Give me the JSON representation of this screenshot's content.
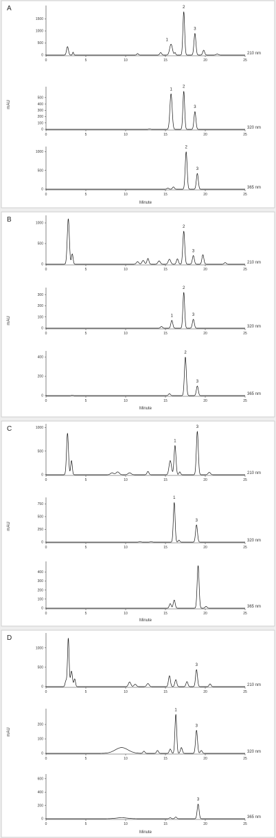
{
  "chart_data": [
    {
      "panel": "A",
      "type": "line",
      "xlabel": "Minute",
      "ylabel": "mAU",
      "xlim": [
        0,
        25
      ],
      "xticks": [
        0,
        5,
        10,
        15,
        20,
        25
      ],
      "traces": [
        {
          "name": "210 nm",
          "ylim": [
            0,
            2000
          ],
          "yticks": [
            0,
            500,
            1000,
            1500
          ],
          "peaks": [
            [
              2.7,
              350,
              0.12
            ],
            [
              3.4,
              120,
              0.07
            ],
            [
              11.5,
              60,
              0.1
            ],
            [
              14.4,
              100,
              0.12
            ],
            [
              15.7,
              450,
              0.17
            ],
            [
              16.2,
              100,
              0.08
            ],
            [
              17.3,
              1800,
              0.11
            ],
            [
              18.7,
              900,
              0.12
            ],
            [
              19.8,
              200,
              0.12
            ],
            [
              21.5,
              40,
              0.15
            ]
          ],
          "labels": [
            {
              "text": "1",
              "x": 15.7
            },
            {
              "text": "2",
              "x": 17.3
            },
            {
              "text": "3",
              "x": 18.7
            }
          ]
        },
        {
          "name": "320 nm",
          "ylim": [
            0,
            650
          ],
          "yticks": [
            0,
            100,
            200,
            300,
            400,
            500
          ],
          "peaks": [
            [
              13.0,
              8,
              0.1
            ],
            [
              15.7,
              560,
              0.14
            ],
            [
              17.3,
              600,
              0.11
            ],
            [
              18.7,
              280,
              0.12
            ]
          ],
          "labels": [
            {
              "text": "1",
              "x": 15.7
            },
            {
              "text": "2",
              "x": 17.3
            },
            {
              "text": "3",
              "x": 18.7
            }
          ]
        },
        {
          "name": "365 nm",
          "ylim": [
            0,
            1100
          ],
          "yticks": [
            0,
            500,
            1000
          ],
          "peaks": [
            [
              15.3,
              30,
              0.12
            ],
            [
              16.0,
              60,
              0.12
            ],
            [
              17.6,
              1000,
              0.12
            ],
            [
              19.0,
              420,
              0.12
            ]
          ],
          "labels": [
            {
              "text": "2",
              "x": 17.6
            },
            {
              "text": "3",
              "x": 19.0
            }
          ]
        }
      ]
    },
    {
      "panel": "B",
      "type": "line",
      "xlabel": "Minute",
      "ylabel": "mAU",
      "xlim": [
        0,
        25
      ],
      "xticks": [
        0,
        5,
        10,
        15,
        20,
        25
      ],
      "traces": [
        {
          "name": "210 nm",
          "ylim": [
            0,
            1150
          ],
          "yticks": [
            0,
            500,
            1000
          ],
          "peaks": [
            [
              2.8,
              1100,
              0.13
            ],
            [
              3.3,
              250,
              0.1
            ],
            [
              11.5,
              60,
              0.15
            ],
            [
              12.2,
              90,
              0.15
            ],
            [
              12.8,
              140,
              0.12
            ],
            [
              14.2,
              80,
              0.15
            ],
            [
              15.5,
              120,
              0.15
            ],
            [
              16.5,
              130,
              0.12
            ],
            [
              17.3,
              800,
              0.12
            ],
            [
              18.5,
              210,
              0.12
            ],
            [
              19.7,
              230,
              0.12
            ],
            [
              22.5,
              40,
              0.12
            ]
          ],
          "labels": [
            {
              "text": "2",
              "x": 17.3
            },
            {
              "text": "3",
              "x": 18.5
            }
          ]
        },
        {
          "name": "320 nm",
          "ylim": [
            0,
            350
          ],
          "yticks": [
            0,
            100,
            200,
            300
          ],
          "peaks": [
            [
              14.5,
              15,
              0.12
            ],
            [
              15.8,
              70,
              0.12
            ],
            [
              17.3,
              320,
              0.11
            ],
            [
              18.5,
              80,
              0.12
            ]
          ],
          "labels": [
            {
              "text": "1",
              "x": 15.8
            },
            {
              "text": "2",
              "x": 17.3
            },
            {
              "text": "3",
              "x": 18.5
            }
          ]
        },
        {
          "name": "365 nm",
          "ylim": [
            0,
            450
          ],
          "yticks": [
            0,
            200,
            400
          ],
          "peaks": [
            [
              3.3,
              5,
              0.1
            ],
            [
              15.5,
              20,
              0.12
            ],
            [
              17.5,
              400,
              0.12
            ],
            [
              19.0,
              100,
              0.12
            ]
          ],
          "labels": [
            {
              "text": "2",
              "x": 17.5
            },
            {
              "text": "3",
              "x": 19.0
            }
          ]
        }
      ]
    },
    {
      "panel": "C",
      "type": "line",
      "xlabel": "Minute",
      "ylabel": "mAU",
      "xlim": [
        0,
        25
      ],
      "xticks": [
        0,
        5,
        10,
        15,
        20,
        25
      ],
      "traces": [
        {
          "name": "210 nm",
          "ylim": [
            0,
            1050
          ],
          "yticks": [
            0,
            500,
            1000
          ],
          "peaks": [
            [
              2.7,
              880,
              0.12
            ],
            [
              3.2,
              300,
              0.1
            ],
            [
              8.3,
              40,
              0.2
            ],
            [
              9.0,
              60,
              0.2
            ],
            [
              10.5,
              40,
              0.2
            ],
            [
              12.8,
              70,
              0.12
            ],
            [
              15.6,
              300,
              0.15
            ],
            [
              16.2,
              620,
              0.12
            ],
            [
              16.8,
              60,
              0.1
            ],
            [
              19.0,
              920,
              0.12
            ],
            [
              20.5,
              50,
              0.15
            ]
          ],
          "labels": [
            {
              "text": "1",
              "x": 16.2
            },
            {
              "text": "3",
              "x": 19.0
            }
          ]
        },
        {
          "name": "320 nm",
          "ylim": [
            0,
            850
          ],
          "yticks": [
            0,
            250,
            500,
            750
          ],
          "peaks": [
            [
              11.8,
              10,
              0.12
            ],
            [
              13.2,
              8,
              0.12
            ],
            [
              16.1,
              780,
              0.11
            ],
            [
              16.7,
              40,
              0.1
            ],
            [
              18.9,
              340,
              0.12
            ]
          ],
          "labels": [
            {
              "text": "1",
              "x": 16.1
            },
            {
              "text": "3",
              "x": 18.9
            }
          ]
        },
        {
          "name": "365 nm",
          "ylim": [
            0,
            500
          ],
          "yticks": [
            0,
            100,
            200,
            300,
            400
          ],
          "peaks": [
            [
              15.6,
              50,
              0.12
            ],
            [
              16.1,
              90,
              0.12
            ],
            [
              19.1,
              470,
              0.12
            ],
            [
              20.1,
              20,
              0.12
            ]
          ],
          "labels": []
        }
      ]
    },
    {
      "panel": "D",
      "type": "line",
      "xlabel": "Minute",
      "ylabel": "mAU",
      "xlim": [
        0,
        25
      ],
      "xticks": [
        0,
        5,
        10,
        15,
        20,
        25
      ],
      "traces": [
        {
          "name": "210 nm",
          "ylim": [
            0,
            1350
          ],
          "yticks": [
            0,
            500,
            1000
          ],
          "peaks": [
            [
              2.5,
              150,
              0.1
            ],
            [
              2.8,
              1250,
              0.1
            ],
            [
              3.2,
              400,
              0.12
            ],
            [
              3.6,
              200,
              0.1
            ],
            [
              10.5,
              120,
              0.15
            ],
            [
              11.2,
              60,
              0.15
            ],
            [
              12.8,
              80,
              0.15
            ],
            [
              15.5,
              280,
              0.12
            ],
            [
              16.3,
              180,
              0.12
            ],
            [
              17.7,
              130,
              0.12
            ],
            [
              18.9,
              440,
              0.12
            ],
            [
              20.6,
              70,
              0.12
            ]
          ],
          "labels": [
            {
              "text": "3",
              "x": 18.9
            }
          ]
        },
        {
          "name": "320 nm",
          "ylim": [
            0,
            300
          ],
          "yticks": [
            0,
            100,
            200
          ],
          "peaks": [
            [
              9.5,
              40,
              0.8
            ],
            [
              12.3,
              15,
              0.12
            ],
            [
              14.0,
              20,
              0.12
            ],
            [
              15.6,
              30,
              0.12
            ],
            [
              16.3,
              270,
              0.11
            ],
            [
              17.0,
              40,
              0.12
            ],
            [
              18.9,
              160,
              0.12
            ],
            [
              19.5,
              20,
              0.12
            ]
          ],
          "labels": [
            {
              "text": "1",
              "x": 16.3
            },
            {
              "text": "3",
              "x": 18.9
            }
          ]
        },
        {
          "name": "365 nm",
          "ylim": [
            0,
            650
          ],
          "yticks": [
            0,
            200,
            400,
            600
          ],
          "peaks": [
            [
              9.5,
              15,
              0.7
            ],
            [
              15.6,
              15,
              0.12
            ],
            [
              16.3,
              25,
              0.12
            ],
            [
              19.1,
              220,
              0.12
            ]
          ],
          "labels": [
            {
              "text": "3",
              "x": 19.1
            }
          ]
        }
      ]
    }
  ]
}
